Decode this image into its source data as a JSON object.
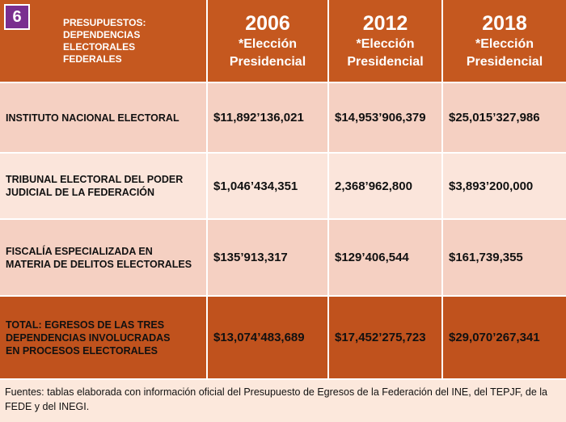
{
  "badge": "6",
  "table": {
    "header": {
      "title": "PRESUPUESTOS: DEPENDENCIAS ELECTORALES FEDERALES",
      "columns": [
        {
          "year": "2006",
          "subtitle": "*Elección Presidencial"
        },
        {
          "year": "2012",
          "subtitle": "*Elección Presidencial"
        },
        {
          "year": "2018",
          "subtitle": "*Elección Presidencial"
        }
      ]
    },
    "rows": [
      [
        "INSTITUTO NACIONAL ELECTORAL",
        "$11,892’136,021",
        "$14,953’906,379",
        "$25,015’327,986"
      ],
      [
        "TRIBUNAL ELECTORAL DEL PODER JUDICIAL DE LA FEDERACIÓN",
        "$1,046’434,351",
        "2,368’962,800",
        "$3,893’200,000"
      ],
      [
        "FISCALÍA ESPECIALIZADA EN MATERIA DE DELITOS ELECTORALES",
        "$135’913,317",
        "$129’406,544",
        "$161,739,355"
      ]
    ],
    "total": [
      "TOTAL: EGRESOS DE LAS TRES DEPENDENCIAS INVOLUCRADAS EN PROCESOS ELECTORALES",
      "$13,074’483,689",
      "$17,452’275,723",
      "$29,070’267,341"
    ]
  },
  "footer": "Fuentes: tablas elaborada con información oficial del Presupuesto de Egresos de la Federación del INE, del TEPJF, de la FEDE y del INEGI."
}
